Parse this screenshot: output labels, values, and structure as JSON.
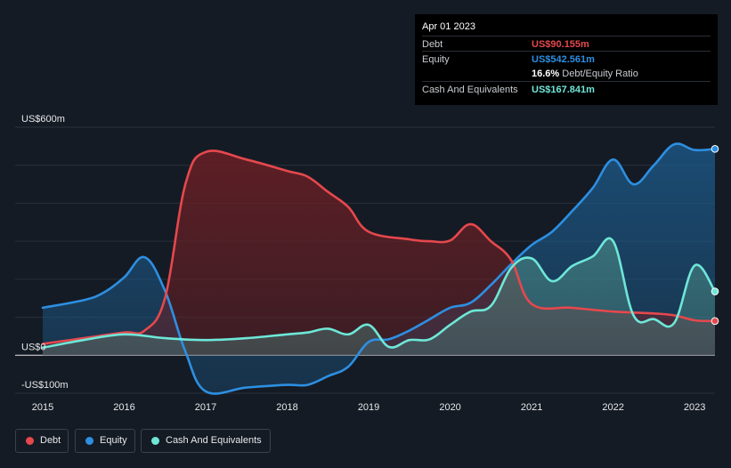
{
  "tooltip": {
    "date": "Apr 01 2023",
    "debt_label": "Debt",
    "debt_value": "US$90.155m",
    "equity_label": "Equity",
    "equity_value": "US$542.561m",
    "ratio_value": "16.6%",
    "ratio_label": "Debt/Equity Ratio",
    "cash_label": "Cash And Equivalents",
    "cash_value": "US$167.841m"
  },
  "colors": {
    "debt": "#e5484d",
    "equity": "#2d8fe2",
    "cash": "#6ee7d8",
    "background": "#151b24"
  },
  "legend": {
    "debt": "Debt",
    "equity": "Equity",
    "cash": "Cash And Equivalents"
  },
  "chart_data": {
    "type": "area",
    "title": "",
    "xlabel": "",
    "ylabel": "",
    "ylim": [
      -100,
      600
    ],
    "y_tick_labels": [
      {
        "value": 600,
        "label": "US$600m"
      },
      {
        "value": 0,
        "label": "US$0"
      },
      {
        "value": -100,
        "label": "-US$100m"
      }
    ],
    "x_ticks": [
      2015,
      2016,
      2017,
      2018,
      2019,
      2020,
      2021,
      2022,
      2023
    ],
    "xlim": [
      2015,
      2023.25
    ],
    "series": [
      {
        "name": "Debt",
        "points": [
          [
            2015,
            30
          ],
          [
            2015.5,
            45
          ],
          [
            2016,
            60
          ],
          [
            2016.25,
            65
          ],
          [
            2016.5,
            150
          ],
          [
            2016.75,
            450
          ],
          [
            2017,
            535
          ],
          [
            2017.5,
            515
          ],
          [
            2018,
            485
          ],
          [
            2018.25,
            470
          ],
          [
            2018.5,
            430
          ],
          [
            2018.75,
            390
          ],
          [
            2019,
            325
          ],
          [
            2019.5,
            305
          ],
          [
            2019.75,
            300
          ],
          [
            2020,
            302
          ],
          [
            2020.25,
            345
          ],
          [
            2020.5,
            300
          ],
          [
            2020.75,
            250
          ],
          [
            2021,
            135
          ],
          [
            2021.5,
            125
          ],
          [
            2022,
            115
          ],
          [
            2022.5,
            110
          ],
          [
            2022.75,
            105
          ],
          [
            2023,
            92
          ],
          [
            2023.25,
            90
          ]
        ]
      },
      {
        "name": "Equity",
        "points": [
          [
            2015,
            125
          ],
          [
            2015.5,
            145
          ],
          [
            2015.75,
            165
          ],
          [
            2016,
            205
          ],
          [
            2016.25,
            258
          ],
          [
            2016.5,
            170
          ],
          [
            2016.75,
            10
          ],
          [
            2017,
            -95
          ],
          [
            2017.5,
            -85
          ],
          [
            2018,
            -78
          ],
          [
            2018.25,
            -78
          ],
          [
            2018.5,
            -55
          ],
          [
            2018.75,
            -30
          ],
          [
            2019,
            35
          ],
          [
            2019.25,
            42
          ],
          [
            2019.5,
            65
          ],
          [
            2019.75,
            95
          ],
          [
            2020,
            125
          ],
          [
            2020.25,
            138
          ],
          [
            2020.5,
            185
          ],
          [
            2020.75,
            240
          ],
          [
            2021,
            290
          ],
          [
            2021.25,
            325
          ],
          [
            2021.5,
            380
          ],
          [
            2021.75,
            440
          ],
          [
            2022,
            515
          ],
          [
            2022.25,
            450
          ],
          [
            2022.5,
            500
          ],
          [
            2022.75,
            555
          ],
          [
            2023,
            540
          ],
          [
            2023.25,
            543
          ]
        ]
      },
      {
        "name": "Cash And Equivalents",
        "points": [
          [
            2015,
            20
          ],
          [
            2015.5,
            40
          ],
          [
            2016,
            55
          ],
          [
            2016.5,
            45
          ],
          [
            2017,
            40
          ],
          [
            2017.5,
            45
          ],
          [
            2018,
            55
          ],
          [
            2018.25,
            60
          ],
          [
            2018.5,
            70
          ],
          [
            2018.75,
            55
          ],
          [
            2019,
            80
          ],
          [
            2019.25,
            22
          ],
          [
            2019.5,
            40
          ],
          [
            2019.75,
            42
          ],
          [
            2020,
            80
          ],
          [
            2020.25,
            115
          ],
          [
            2020.5,
            130
          ],
          [
            2020.75,
            230
          ],
          [
            2021,
            255
          ],
          [
            2021.25,
            195
          ],
          [
            2021.5,
            235
          ],
          [
            2021.75,
            260
          ],
          [
            2022,
            300
          ],
          [
            2022.25,
            105
          ],
          [
            2022.5,
            95
          ],
          [
            2022.75,
            85
          ],
          [
            2023,
            236
          ],
          [
            2023.25,
            168
          ]
        ]
      }
    ]
  }
}
